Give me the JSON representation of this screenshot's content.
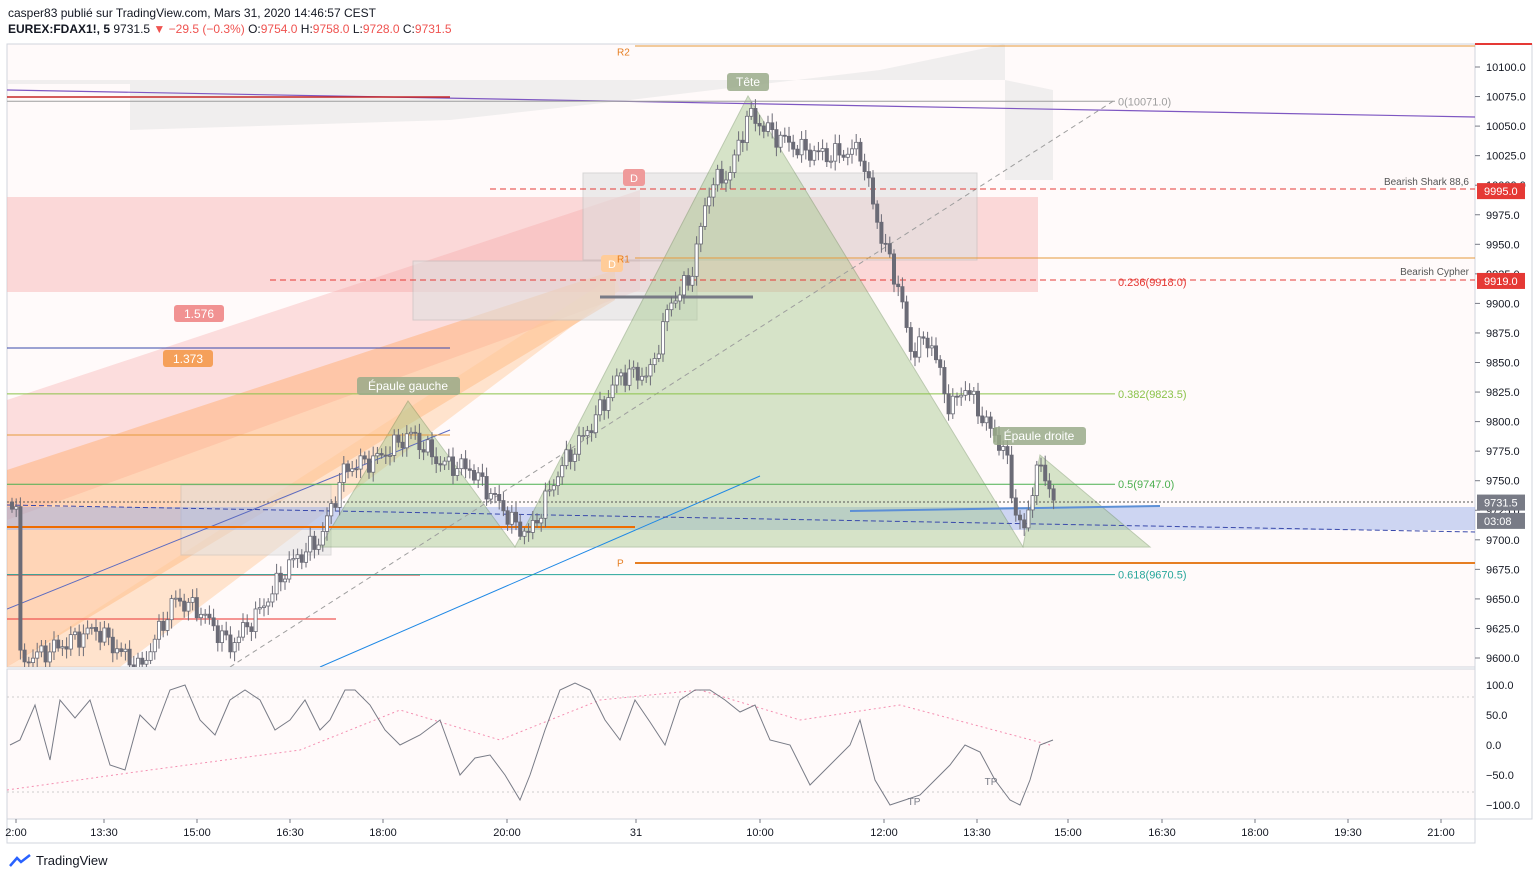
{
  "header": {
    "line1": "casper83 publié sur TradingView.com, Mars 31, 2020 14:46:57 CEST",
    "symbol": "EUREX:FDAX1!, 5",
    "last": "9731.5",
    "change": "−29.5 (−0.3%)",
    "o_label": "O:",
    "o": "9754.0",
    "h_label": "H:",
    "h": "9758.0",
    "l_label": "L:",
    "l": "9728.0",
    "c_label": "C:",
    "c": "9731.5"
  },
  "footer": {
    "brand": "TradingView"
  },
  "colors": {
    "up": "#131722",
    "down": "#ef5350",
    "candle": "#6b6b76",
    "fibGreen": "#4caf50",
    "bg": "#fffafa"
  },
  "chart_data": {
    "type": "candlestick",
    "y_axis": {
      "min": 9590,
      "max": 10115,
      "ticks": [
        10100.0,
        10075.0,
        10050.0,
        10025.0,
        10000.0,
        9975.0,
        9950.0,
        9925.0,
        9900.0,
        9875.0,
        9850.0,
        9825.0,
        9800.0,
        9775.0,
        9750.0,
        9725.0,
        9700.0,
        9675.0,
        9650.0,
        9625.0,
        9600.0
      ]
    },
    "y_tick_labels": [
      "10100.0",
      "10075.0",
      "10050.0",
      "10025.0",
      "10000.0",
      "9975.0",
      "9950.0",
      "9925.0",
      "9900.0",
      "9875.0",
      "9850.0",
      "9825.0",
      "9800.0",
      "9775.0",
      "9750.0",
      "9725.0",
      "9700.0",
      "9675.0",
      "9650.0",
      "9625.0",
      "9600.0"
    ],
    "x_tick_labels": [
      "2:00",
      "13:30",
      "15:00",
      "16:30",
      "18:00",
      "20:00",
      "31",
      "10:00",
      "12:00",
      "13:30",
      "15:00",
      "16:30",
      "18:00",
      "19:30",
      "21:00"
    ],
    "price_tags": [
      {
        "label": "9995.0",
        "price": 9995.0,
        "color": "#e53935"
      },
      {
        "label": "9919.0",
        "price": 9919.0,
        "color": "#e53935"
      },
      {
        "label": "9731.5",
        "price": 9731.5,
        "color": "#787b86"
      },
      {
        "label": "03:08",
        "price": 9716,
        "color": "#787b86"
      }
    ],
    "fib_levels": [
      {
        "label": "0(10071.0)",
        "price": 10071.0,
        "color": "#9e9e9e"
      },
      {
        "label": "0.236(9918.0)",
        "price": 9918.0,
        "color": "#e53935"
      },
      {
        "label": "0.382(9823.5)",
        "price": 9823.5,
        "color": "#8bc34a"
      },
      {
        "label": "0.5(9747.0)",
        "price": 9747.0,
        "color": "#4caf50"
      },
      {
        "label": "0.618(9670.5)",
        "price": 9670.5,
        "color": "#26a69a"
      }
    ],
    "pivot_labels": [
      {
        "label": "R2",
        "price": 10113
      },
      {
        "label": "R1",
        "price": 9938
      },
      {
        "label": "P",
        "price": 9681
      }
    ],
    "pattern_labels": [
      "Tête",
      "Épaule gauche",
      "Épaule droite",
      "Bearish Shark 88,6",
      "Bearish Cypher",
      "1.576",
      "1.373",
      "D",
      "D"
    ],
    "oscillator": {
      "ticks": [
        100.0,
        50.0,
        0.0,
        -50.0,
        -100.0
      ],
      "tick_labels": [
        "100.0",
        "50.0",
        "0.0",
        "−50.0",
        "−100.0"
      ],
      "markers": [
        "TP",
        "TP"
      ]
    }
  }
}
